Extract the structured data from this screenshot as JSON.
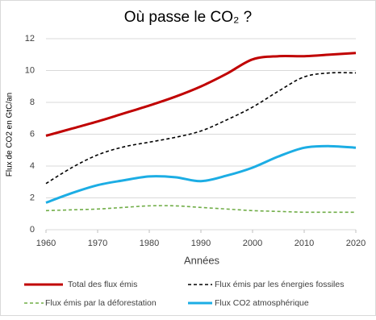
{
  "chart_data": {
    "type": "line",
    "title": "Où passe le CO₂ ?",
    "xlabel": "Années",
    "ylabel": "Flux de CO2 en GtC/an",
    "x": [
      1960,
      1965,
      1970,
      1975,
      1980,
      1985,
      1990,
      1995,
      2000,
      2005,
      2010,
      2015,
      2020
    ],
    "series": [
      {
        "name": "Total des flux émis",
        "color": "#c00000",
        "dash": "solid",
        "values": [
          5.9,
          6.35,
          6.8,
          7.3,
          7.8,
          8.35,
          9.0,
          9.8,
          10.7,
          10.9,
          10.9,
          11.0,
          11.1
        ]
      },
      {
        "name": "Flux émis par les énergies fossiles",
        "color": "#000000",
        "dash": "dashed",
        "values": [
          2.9,
          3.9,
          4.7,
          5.2,
          5.5,
          5.8,
          6.2,
          6.9,
          7.7,
          8.7,
          9.6,
          9.85,
          9.85
        ]
      },
      {
        "name": "Flux émis par la déforestation",
        "color": "#70ad47",
        "dash": "dashed",
        "values": [
          1.2,
          1.25,
          1.3,
          1.4,
          1.5,
          1.5,
          1.4,
          1.3,
          1.2,
          1.15,
          1.1,
          1.1,
          1.1
        ]
      },
      {
        "name": "Flux CO2 atmosphérique",
        "color": "#1cade4",
        "dash": "solid",
        "values": [
          1.7,
          2.3,
          2.8,
          3.1,
          3.35,
          3.3,
          3.05,
          3.4,
          3.9,
          4.6,
          5.15,
          5.25,
          5.15
        ]
      }
    ],
    "xlim": [
      1960,
      2020
    ],
    "xticks": [
      1960,
      1970,
      1980,
      1990,
      2000,
      2010,
      2020
    ],
    "ylim": [
      0,
      12
    ],
    "yticks": [
      0,
      2,
      4,
      6,
      8,
      10,
      12
    ],
    "grid": true,
    "legend": "bottom"
  }
}
